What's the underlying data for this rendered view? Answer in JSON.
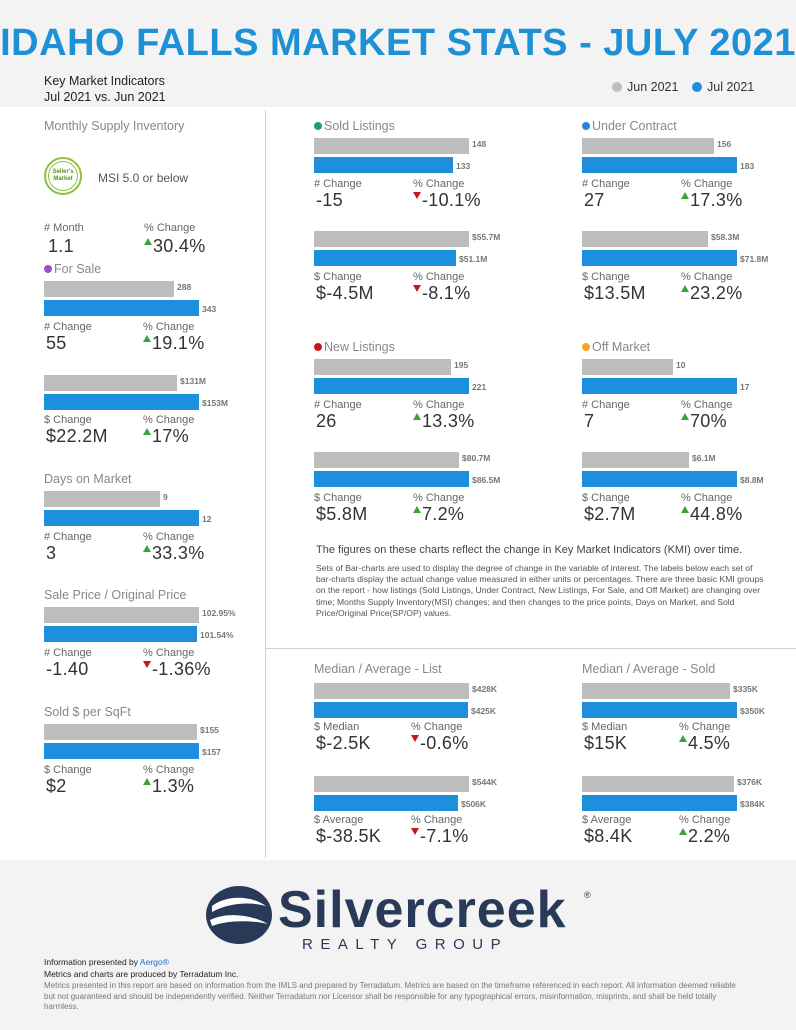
{
  "title": "IDAHO FALLS MARKET STATS - JULY 2021",
  "kmi": {
    "line1": "Key Market Indicators",
    "line2": "Jul 2021 vs. Jun 2021"
  },
  "legend": {
    "jun": "Jun 2021",
    "jul": "Jul 2021",
    "jun_color": "#bdbdbd",
    "jul_color": "#1e8fdc"
  },
  "colors": {
    "accent": "#1e90d6",
    "up": "#3aa33a",
    "down": "#c8161d",
    "sold_dot": "#16a085",
    "under_contract_dot": "#2c86d6",
    "for_sale_dot": "#9b4fc8",
    "new_listings_dot": "#c8161d",
    "off_market_dot": "#f5a623"
  },
  "msi": {
    "title": "Monthly Supply Inventory",
    "badge": "Seller's Market",
    "text": "MSI 5.0 or below",
    "lbl1": "# Month",
    "val1": "1.1",
    "lbl2": "% Change",
    "val2": "30.4%",
    "dir2": "up"
  },
  "for_sale": {
    "title": "For Sale",
    "count": {
      "jun": "288",
      "jul": "343",
      "jun_v": 288,
      "jul_v": 343
    },
    "count_stats": {
      "lbl1": "# Change",
      "val1": "55",
      "lbl2": "% Change",
      "val2": "19.1%",
      "dir2": "up"
    },
    "volume": {
      "jun": "$131M",
      "jul": "$153M",
      "jun_v": 131,
      "jul_v": 153
    },
    "volume_stats": {
      "lbl1": "$ Change",
      "val1": "$22.2M",
      "lbl2": "% Change",
      "val2": "17%",
      "dir2": "up"
    }
  },
  "days_on_market": {
    "title": "Days on Market",
    "bars": {
      "jun": "9",
      "jul": "12",
      "jun_v": 9,
      "jul_v": 12
    },
    "stats": {
      "lbl1": "# Change",
      "val1": "3",
      "lbl2": "% Change",
      "val2": "33.3%",
      "dir2": "up"
    }
  },
  "sale_price": {
    "title": "Sale Price / Original Price",
    "bars": {
      "jun": "102.95%",
      "jul": "101.54%",
      "jun_v": 102.95,
      "jul_v": 101.54
    },
    "stats": {
      "lbl1": "# Change",
      "val1": "-1.40",
      "lbl2": "% Change",
      "val2": "-1.36%",
      "dir2": "down"
    }
  },
  "sold_per_sqft": {
    "title": "Sold $ per SqFt",
    "bars": {
      "jun": "$155",
      "jul": "$157",
      "jun_v": 155,
      "jul_v": 157
    },
    "stats": {
      "lbl1": "$ Change",
      "val1": "$2",
      "lbl2": "% Change",
      "val2": "1.3%",
      "dir2": "up"
    }
  },
  "sold_listings": {
    "title": "Sold Listings",
    "count": {
      "jun": "148",
      "jul": "133",
      "jun_v": 148,
      "jul_v": 133
    },
    "count_stats": {
      "lbl1": "# Change",
      "val1": "-15",
      "lbl2": "% Change",
      "val2": "-10.1%",
      "dir2": "down"
    },
    "volume": {
      "jun": "$55.7M",
      "jul": "$51.1M",
      "jun_v": 55.7,
      "jul_v": 51.1
    },
    "volume_stats": {
      "lbl1": "$ Change",
      "val1": "$-4.5M",
      "lbl2": "% Change",
      "val2": "-8.1%",
      "dir2": "down"
    }
  },
  "under_contract": {
    "title": "Under Contract",
    "count": {
      "jun": "156",
      "jul": "183",
      "jun_v": 156,
      "jul_v": 183
    },
    "count_stats": {
      "lbl1": "# Change",
      "val1": "27",
      "lbl2": "% Change",
      "val2": "17.3%",
      "dir2": "up"
    },
    "volume": {
      "jun": "$58.3M",
      "jul": "$71.8M",
      "jun_v": 58.3,
      "jul_v": 71.8
    },
    "volume_stats": {
      "lbl1": "$ Change",
      "val1": "$13.5M",
      "lbl2": "% Change",
      "val2": "23.2%",
      "dir2": "up"
    }
  },
  "new_listings": {
    "title": "New Listings",
    "count": {
      "jun": "195",
      "jul": "221",
      "jun_v": 195,
      "jul_v": 221
    },
    "count_stats": {
      "lbl1": "# Change",
      "val1": "26",
      "lbl2": "% Change",
      "val2": "13.3%",
      "dir2": "up"
    },
    "volume": {
      "jun": "$80.7M",
      "jul": "$86.5M",
      "jun_v": 80.7,
      "jul_v": 86.5
    },
    "volume_stats": {
      "lbl1": "$ Change",
      "val1": "$5.8M",
      "lbl2": "% Change",
      "val2": "7.2%",
      "dir2": "up"
    }
  },
  "off_market": {
    "title": "Off Market",
    "count": {
      "jun": "10",
      "jul": "17",
      "jun_v": 10,
      "jul_v": 17
    },
    "count_stats": {
      "lbl1": "# Change",
      "val1": "7",
      "lbl2": "% Change",
      "val2": "70%",
      "dir2": "up"
    },
    "volume": {
      "jun": "$6.1M",
      "jul": "$8.8M",
      "jun_v": 6.1,
      "jul_v": 8.8
    },
    "volume_stats": {
      "lbl1": "$ Change",
      "val1": "$2.7M",
      "lbl2": "% Change",
      "val2": "44.8%",
      "dir2": "up"
    }
  },
  "median_avg_list": {
    "title": "Median / Average - List",
    "median": {
      "jun": "$428K",
      "jul": "$425K",
      "jun_v": 428,
      "jul_v": 425
    },
    "median_stats": {
      "lbl1": "$ Median",
      "val1": "$-2.5K",
      "lbl2": "% Change",
      "val2": "-0.6%",
      "dir2": "down"
    },
    "average": {
      "jun": "$544K",
      "jul": "$506K",
      "jun_v": 544,
      "jul_v": 506
    },
    "average_stats": {
      "lbl1": "$ Average",
      "val1": "$-38.5K",
      "lbl2": "% Change",
      "val2": "-7.1%",
      "dir2": "down"
    }
  },
  "median_avg_sold": {
    "title": "Median / Average - Sold",
    "median": {
      "jun": "$335K",
      "jul": "$350K",
      "jun_v": 335,
      "jul_v": 350
    },
    "median_stats": {
      "lbl1": "$ Median",
      "val1": "$15K",
      "lbl2": "% Change",
      "val2": "4.5%",
      "dir2": "up"
    },
    "average": {
      "jun": "$376K",
      "jul": "$384K",
      "jun_v": 376,
      "jul_v": 384
    },
    "average_stats": {
      "lbl1": "$ Average",
      "val1": "$8.4K",
      "lbl2": "% Change",
      "val2": "2.2%",
      "dir2": "up"
    }
  },
  "notes": {
    "main": "The figures on these charts reflect the change in Key Market Indicators (KMI) over time.",
    "sub": "Sets of Bar-charts are used to display the degree of change in the variable of interest. The labels below each set of bar-charts display the actual change value measured in either units or percentages. There are three basic KMI groups on the report - how listings (Sold Listings, Under Contract, New Listings, For Sale, and Off Market) are changing over time; Months Supply Inventory(MSI) changes; and then changes to the price points, Days on Market, and Sold Price/Original Price(SP/OP) values."
  },
  "logo": {
    "word": "Silvercreek",
    "sub": "REALTY GROUP",
    "reg": "®"
  },
  "footer": {
    "presented_prefix": "Information presented by ",
    "presented_link": "Aergo®",
    "produced": "Metrics and charts are produced by Terradatum Inc.",
    "disclaimer": "Metrics presented in this report are based on information from the IMLS and prepared by Terradatum. Metrics are based on the timeframe referenced in each report. All information deemed reliable but not guaranteed and should be independently verified. Neither Terradatum nor Licensor shall be responsible for any typographical errors, misinformation, misprints, and shall be held totally harmless."
  }
}
